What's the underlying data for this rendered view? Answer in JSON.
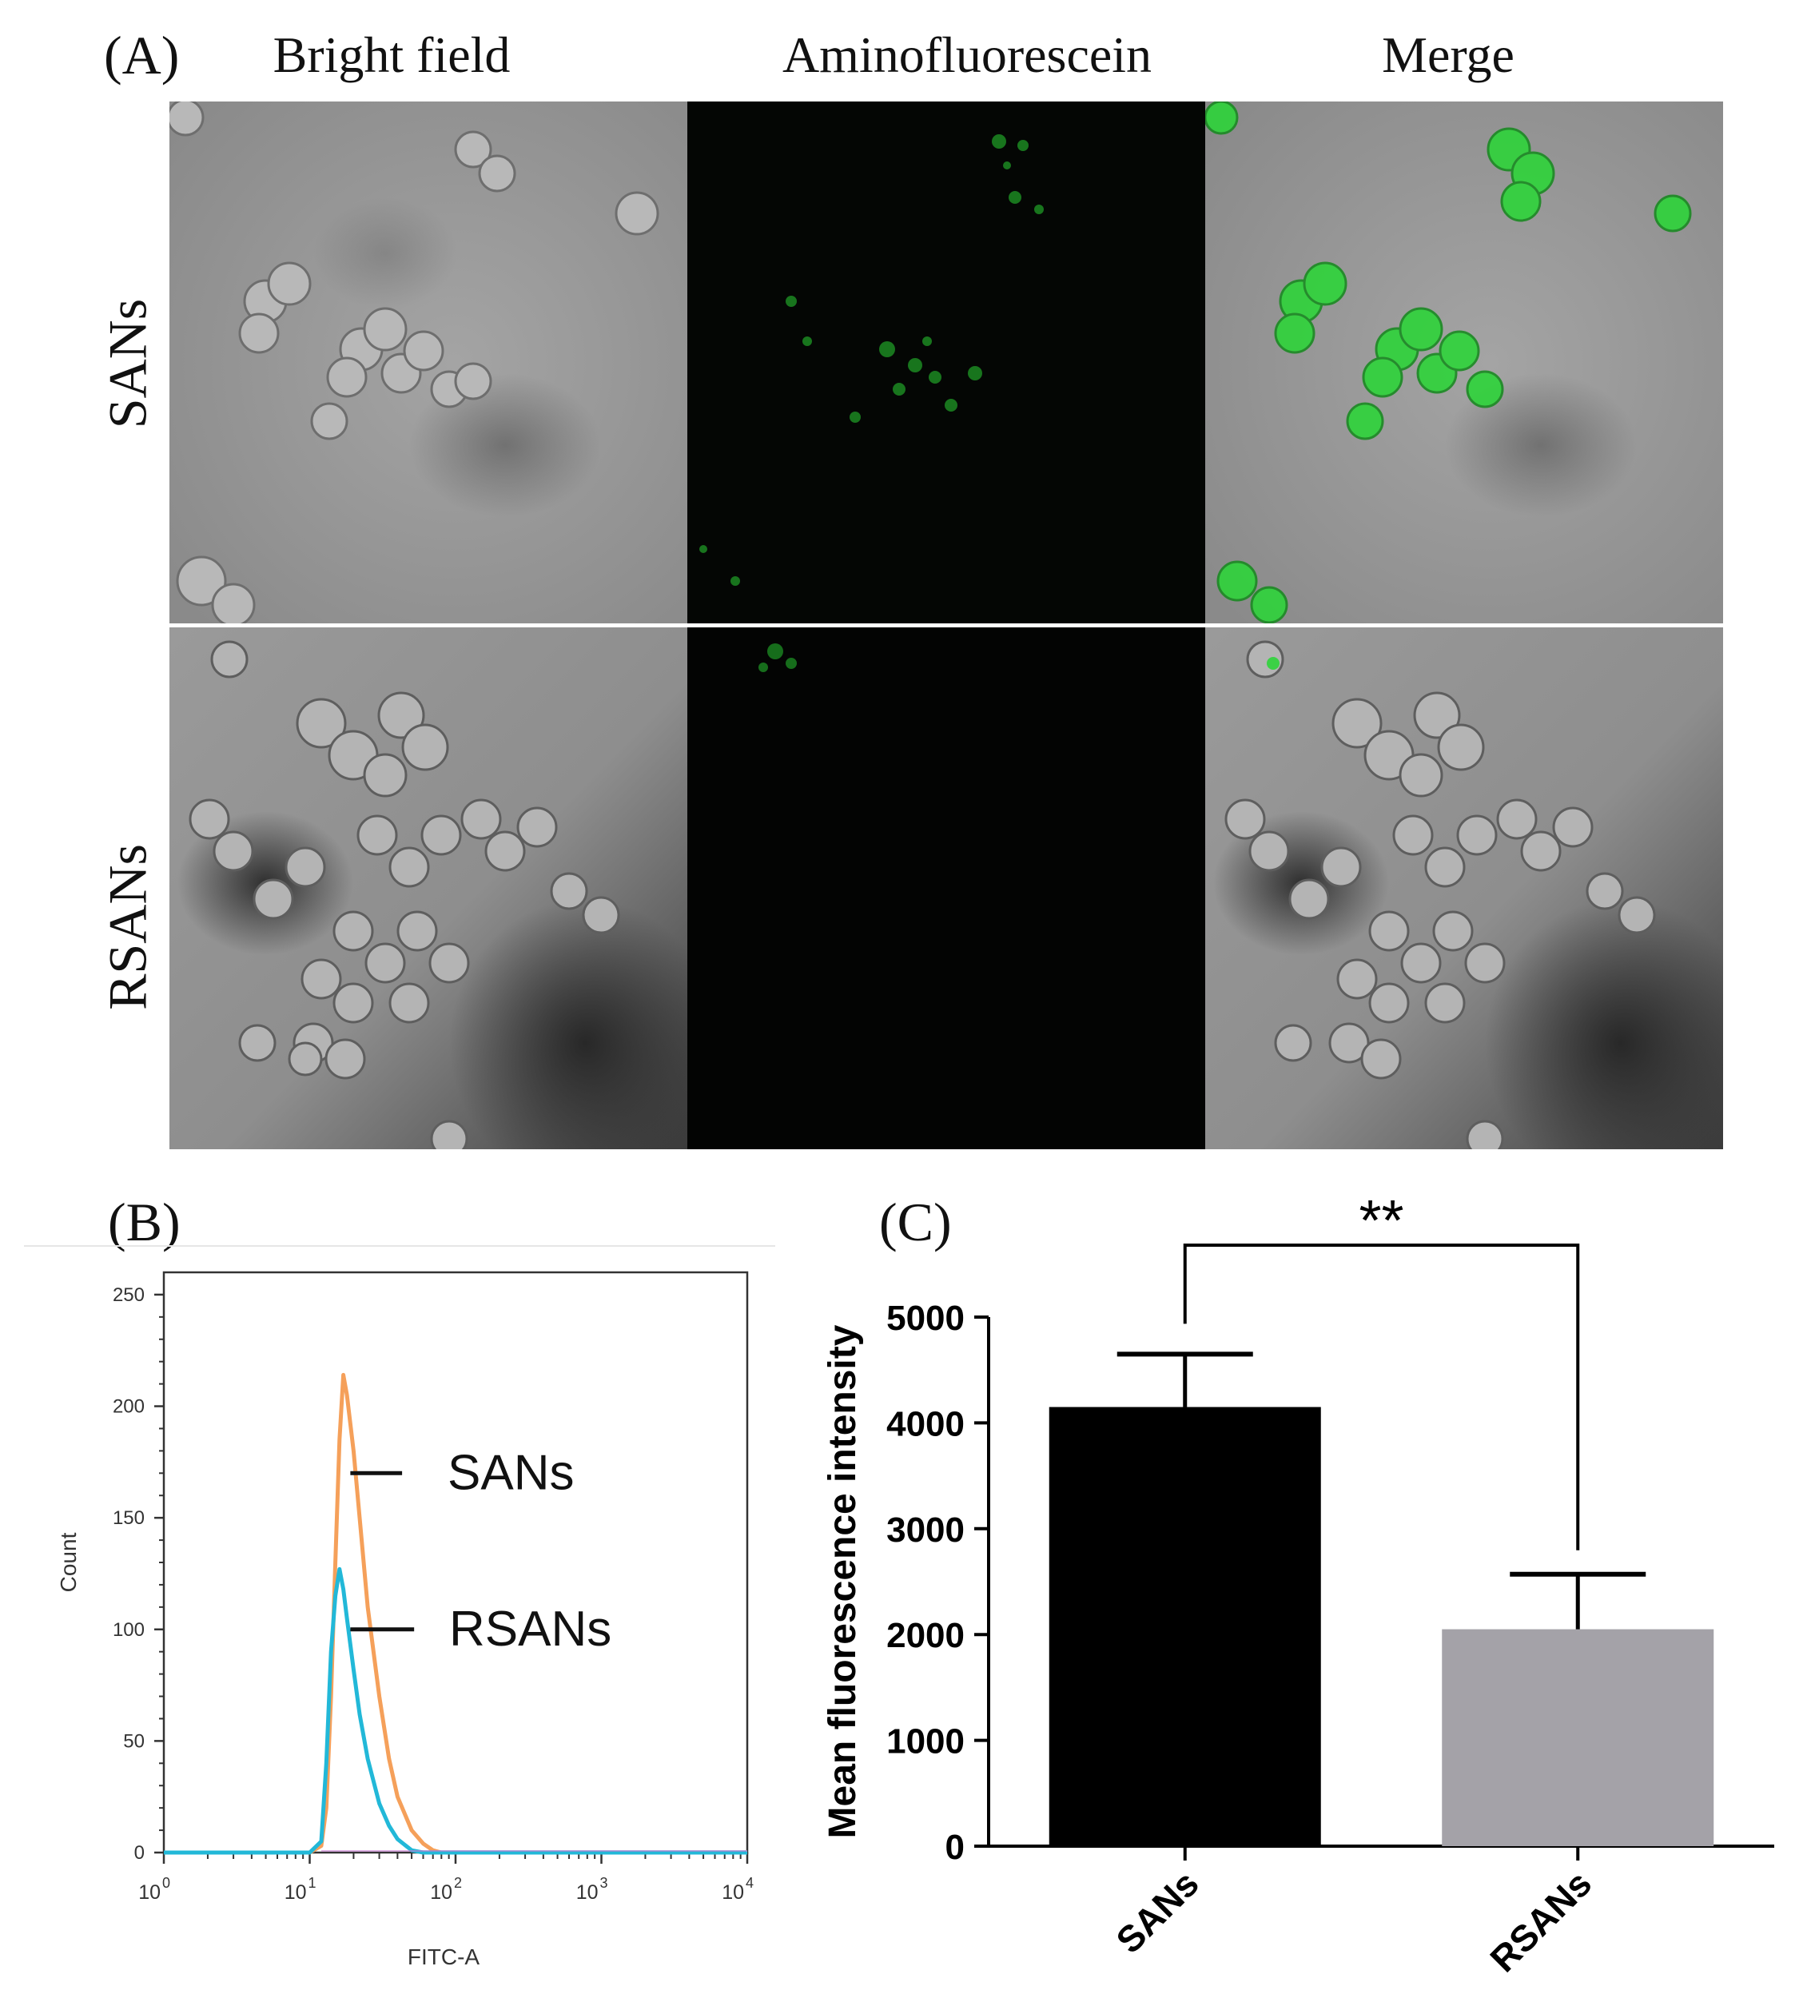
{
  "panel_a": {
    "letter": "(A)",
    "columns": [
      "Bright field",
      "Aminofluorescein",
      "Merge"
    ],
    "rows": [
      "SANs",
      "RSANs"
    ],
    "fluor_color": "#2ee83a"
  },
  "chart_data": [
    {
      "panel": "(B)",
      "type": "line",
      "xlabel": "FITC-A",
      "ylabel": "Count",
      "xscale": "log",
      "xlim": [
        1,
        10000
      ],
      "ylim": [
        0,
        260
      ],
      "yticks": [
        0,
        50,
        100,
        150,
        200,
        250
      ],
      "xticks": [
        1,
        10,
        100,
        1000,
        10000
      ],
      "xtick_labels": [
        {
          "base": "10",
          "exp": "0"
        },
        {
          "base": "10",
          "exp": "1"
        },
        {
          "base": "10",
          "exp": "2"
        },
        {
          "base": "10",
          "exp": "3"
        },
        {
          "base": "10",
          "exp": "4"
        }
      ],
      "series": [
        {
          "name": "SANs",
          "color": "#f5a05a",
          "points": [
            [
              1,
              0
            ],
            [
              10,
              0
            ],
            [
              12,
              3
            ],
            [
              13,
              20
            ],
            [
              14,
              70
            ],
            [
              15,
              130
            ],
            [
              16,
              185
            ],
            [
              17,
              214
            ],
            [
              18,
              205
            ],
            [
              20,
              180
            ],
            [
              22,
              150
            ],
            [
              25,
              110
            ],
            [
              30,
              70
            ],
            [
              35,
              42
            ],
            [
              40,
              25
            ],
            [
              50,
              10
            ],
            [
              60,
              4
            ],
            [
              70,
              1
            ],
            [
              80,
              0
            ],
            [
              10000,
              0
            ]
          ]
        },
        {
          "name": "RSANs",
          "color": "#22b8d8",
          "points": [
            [
              1,
              0
            ],
            [
              10,
              0
            ],
            [
              12,
              5
            ],
            [
              13,
              40
            ],
            [
              14,
              90
            ],
            [
              15,
              115
            ],
            [
              16,
              127
            ],
            [
              17,
              118
            ],
            [
              18,
              105
            ],
            [
              20,
              82
            ],
            [
              22,
              62
            ],
            [
              25,
              42
            ],
            [
              30,
              22
            ],
            [
              35,
              12
            ],
            [
              40,
              6
            ],
            [
              50,
              1
            ],
            [
              60,
              0
            ],
            [
              10000,
              0
            ]
          ]
        }
      ],
      "annotations": [
        "SANs",
        "RSANs"
      ]
    },
    {
      "panel": "(C)",
      "type": "bar",
      "ylabel": "Mean fluorescence intensity",
      "categories": [
        "SANs",
        "RSANs"
      ],
      "values": [
        4150,
        2050
      ],
      "errors": [
        500,
        520
      ],
      "colors": [
        "#000000",
        "#a4a2a8"
      ],
      "ylim": [
        0,
        5000
      ],
      "yticks": [
        0,
        1000,
        2000,
        3000,
        4000,
        5000
      ],
      "significance": "**"
    }
  ]
}
